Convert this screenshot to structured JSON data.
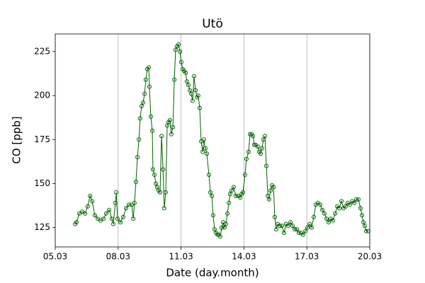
{
  "chart_data": {
    "type": "line",
    "title": "Utö",
    "xlabel": "Date (day.month)",
    "ylabel": "CO [ppb]",
    "color": "#006400",
    "marker": "open-circle",
    "grid": "x",
    "xlim": [
      5,
      20
    ],
    "ylim": [
      114,
      235
    ],
    "xticks": [
      {
        "value": 5,
        "label": "05.03"
      },
      {
        "value": 8,
        "label": "08.03"
      },
      {
        "value": 11,
        "label": "11.03"
      },
      {
        "value": 14,
        "label": "14.03"
      },
      {
        "value": 17,
        "label": "17.03"
      },
      {
        "value": 20,
        "label": "20.03"
      }
    ],
    "yticks": [
      125,
      150,
      175,
      200,
      225
    ],
    "x": [
      5.95,
      6.01,
      6.15,
      6.28,
      6.42,
      6.55,
      6.66,
      6.76,
      6.89,
      7.03,
      7.16,
      7.3,
      7.43,
      7.57,
      7.7,
      7.77,
      7.87,
      7.91,
      7.97,
      8.11,
      8.24,
      8.38,
      8.51,
      8.65,
      8.72,
      8.78,
      8.85,
      8.92,
      8.99,
      9.05,
      9.12,
      9.19,
      9.26,
      9.32,
      9.39,
      9.46,
      9.49,
      9.56,
      9.63,
      9.66,
      9.73,
      9.8,
      9.86,
      9.93,
      10.0,
      10.07,
      10.14,
      10.2,
      10.27,
      10.34,
      10.41,
      10.47,
      10.54,
      10.61,
      10.68,
      10.74,
      10.81,
      10.88,
      10.95,
      11.01,
      11.08,
      11.15,
      11.22,
      11.28,
      11.35,
      11.42,
      11.49,
      11.55,
      11.62,
      11.69,
      11.76,
      11.82,
      11.89,
      11.96,
      12.03,
      12.09,
      12.16,
      12.23,
      12.33,
      12.4,
      12.47,
      12.53,
      12.6,
      12.67,
      12.74,
      12.8,
      12.87,
      12.94,
      13.01,
      13.07,
      13.14,
      13.21,
      13.28,
      13.34,
      13.41,
      13.51,
      13.61,
      13.72,
      13.82,
      13.89,
      13.95,
      14.05,
      14.12,
      14.22,
      14.29,
      14.36,
      14.43,
      14.49,
      14.56,
      14.66,
      14.73,
      14.8,
      14.86,
      14.93,
      15.0,
      15.07,
      15.14,
      15.2,
      15.27,
      15.34,
      15.41,
      15.47,
      15.54,
      15.61,
      15.71,
      15.81,
      15.91,
      16.01,
      16.11,
      16.22,
      16.32,
      16.42,
      16.52,
      16.62,
      16.72,
      16.82,
      16.93,
      17.03,
      17.13,
      17.23,
      17.33,
      17.43,
      17.53,
      17.64,
      17.74,
      17.84,
      17.94,
      18.04,
      18.14,
      18.24,
      18.35,
      18.45,
      18.55,
      18.65,
      18.75,
      18.85,
      18.95,
      19.05,
      19.16,
      19.26,
      19.36,
      19.46,
      19.56,
      19.63,
      19.7,
      19.76,
      19.83,
      19.93
    ],
    "values": [
      127,
      128,
      133,
      134,
      133,
      137,
      143,
      140,
      132,
      130,
      129,
      130,
      133,
      135,
      130,
      127,
      139,
      145,
      130,
      128,
      131,
      136,
      138,
      138,
      130,
      139,
      151,
      165,
      175,
      187,
      194,
      196,
      201,
      209,
      215,
      216,
      205,
      188,
      180,
      158,
      155,
      150,
      148,
      146,
      145,
      177,
      158,
      136,
      145,
      183,
      185,
      186,
      178,
      182,
      209,
      226,
      228,
      229,
      225,
      219,
      215,
      214,
      213,
      208,
      206,
      203,
      201,
      197,
      211,
      203,
      199,
      200,
      193,
      174,
      168,
      175,
      170,
      167,
      155,
      145,
      143,
      132,
      124,
      122,
      121,
      121,
      120,
      125,
      128,
      125,
      127,
      133,
      139,
      144,
      146,
      148,
      143,
      143,
      142,
      144,
      145,
      155,
      164,
      168,
      178,
      178,
      177,
      172,
      172,
      171,
      168,
      167,
      170,
      175,
      177,
      160,
      143,
      141,
      146,
      149,
      148,
      131,
      124,
      127,
      126,
      126,
      122,
      127,
      126,
      128,
      126,
      124,
      124,
      122,
      122,
      121,
      123,
      125,
      127,
      125,
      131,
      138,
      139,
      138,
      135,
      133,
      130,
      128,
      130,
      129,
      133,
      137,
      136,
      140,
      136,
      137,
      139,
      138,
      140,
      139,
      141,
      141,
      136,
      132,
      128,
      126,
      123,
      123
    ]
  }
}
